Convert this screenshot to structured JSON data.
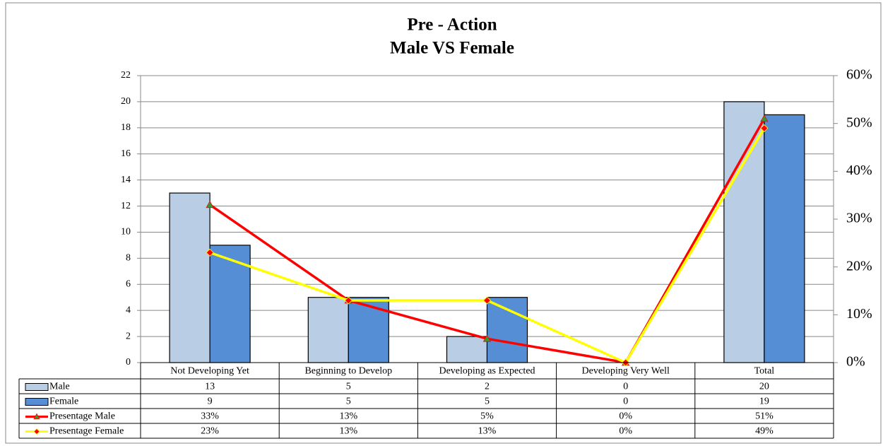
{
  "chart_data": {
    "type": "bar",
    "title": "Pre - Action",
    "subtitle": "Male VS Female",
    "categories": [
      "Not Developing Yet",
      "Beginning to Develop",
      "Developing as Expected",
      "Developing Very Well",
      "Total"
    ],
    "series": [
      {
        "name": "Male",
        "color": "#b9cde5",
        "values": [
          13,
          5,
          2,
          0,
          20
        ]
      },
      {
        "name": "Female",
        "color": "#558ed5",
        "values": [
          9,
          5,
          5,
          0,
          19
        ]
      },
      {
        "name": "Presentage Male",
        "type": "line",
        "axis": "y2",
        "color": "#ff0000",
        "marker_color": "#339933",
        "marker": "triangle",
        "values": [
          33,
          13,
          5,
          0,
          51
        ],
        "value_labels": [
          "33%",
          "13%",
          "5%",
          "0%",
          "51%"
        ]
      },
      {
        "name": "Presentage Female",
        "type": "line",
        "axis": "y2",
        "color": "#ffff00",
        "marker_color": "#ff0000",
        "marker": "diamond",
        "values": [
          23,
          13,
          13,
          0,
          49
        ],
        "value_labels": [
          "23%",
          "13%",
          "13%",
          "0%",
          "49%"
        ]
      }
    ],
    "ylim": [
      0,
      22
    ],
    "yticks": [
      0,
      2,
      4,
      6,
      8,
      10,
      12,
      14,
      16,
      18,
      20,
      22
    ],
    "y2lim": [
      0,
      60
    ],
    "y2ticks": [
      {
        "value": 0,
        "label": "0%"
      },
      {
        "value": 10,
        "label": "10%"
      },
      {
        "value": 20,
        "label": "20%"
      },
      {
        "value": 30,
        "label": "30%"
      },
      {
        "value": 40,
        "label": "40%"
      },
      {
        "value": 50,
        "label": "50%"
      },
      {
        "value": 60,
        "label": "60%"
      }
    ],
    "grid": true,
    "data_table": true
  }
}
